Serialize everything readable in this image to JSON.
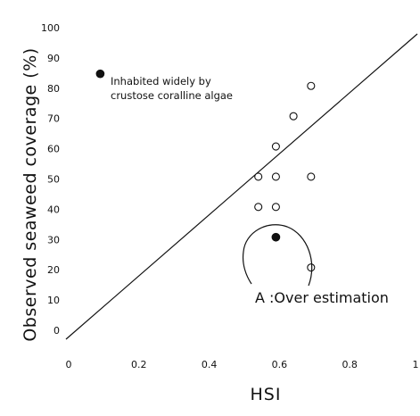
{
  "chart_data": {
    "type": "scatter",
    "xlabel": "HSI",
    "ylabel": "Observed seaweed coverage (%)",
    "xlim": [
      0,
      1
    ],
    "ylim": [
      0,
      100
    ],
    "x_ticks": [
      "0",
      "0.2",
      "0.4",
      "0.6",
      "0.8",
      "1"
    ],
    "y_ticks": [
      "0",
      "10",
      "20",
      "30",
      "40",
      "50",
      "60",
      "70",
      "80",
      "90",
      "100"
    ],
    "grid": false,
    "reference_line": {
      "from": [
        0,
        0
      ],
      "to": [
        1,
        100
      ]
    },
    "series": [
      {
        "marker": "open-circle",
        "points": [
          {
            "x": 0.7,
            "y": 84
          },
          {
            "x": 0.65,
            "y": 74
          },
          {
            "x": 0.6,
            "y": 64
          },
          {
            "x": 0.55,
            "y": 54
          },
          {
            "x": 0.6,
            "y": 54
          },
          {
            "x": 0.7,
            "y": 54
          },
          {
            "x": 0.55,
            "y": 44
          },
          {
            "x": 0.6,
            "y": 44
          },
          {
            "x": 0.7,
            "y": 24
          }
        ]
      },
      {
        "marker": "filled-circle",
        "points": [
          {
            "x": 0.1,
            "y": 88
          },
          {
            "x": 0.6,
            "y": 34
          }
        ]
      }
    ],
    "annotations": [
      {
        "id": "algae",
        "lines": [
          "Inhabited widely by",
          "crustose coralline algae"
        ]
      },
      {
        "id": "overestimation",
        "text": "A :Over estimation"
      }
    ]
  }
}
